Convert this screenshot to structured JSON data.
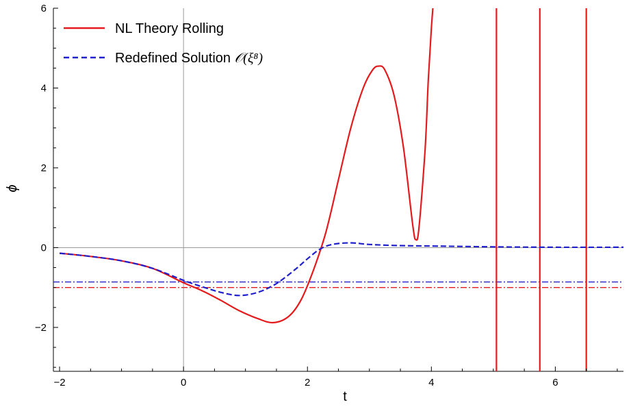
{
  "chart_data": {
    "type": "line",
    "xlabel": "t",
    "ylabel": "ϕ",
    "xlim": [
      -2.1,
      7.1
    ],
    "ylim": [
      -3.1,
      6.0
    ],
    "x_ticks": [
      -2,
      0,
      2,
      4,
      6
    ],
    "x_tick_labels": [
      "−2",
      "0",
      "2",
      "4",
      "6"
    ],
    "y_ticks": [
      -2,
      0,
      2,
      4,
      6
    ],
    "y_tick_labels": [
      "−2",
      "0",
      "2",
      "4",
      "6"
    ],
    "grid": false,
    "reference_lines": {
      "x": 0,
      "y": 0
    },
    "legend_position": "top-left",
    "series": [
      {
        "name": "NL Theory Rolling",
        "color": "#e41a1c",
        "style": "solid",
        "x": [
          -2.0,
          -1.5,
          -1.0,
          -0.5,
          0.0,
          0.3,
          0.6,
          0.9,
          1.2,
          1.45,
          1.7,
          1.9,
          2.1,
          2.3,
          2.5,
          2.7,
          2.9,
          3.05,
          3.15,
          3.25,
          3.4,
          3.55,
          3.7,
          3.75,
          3.8,
          3.9,
          3.95,
          4.0,
          4.05
        ],
        "y": [
          -0.14,
          -0.22,
          -0.33,
          -0.52,
          -0.88,
          -1.08,
          -1.32,
          -1.58,
          -1.78,
          -1.88,
          -1.72,
          -1.3,
          -0.55,
          0.4,
          1.7,
          3.0,
          4.0,
          4.45,
          4.55,
          4.45,
          3.8,
          2.5,
          0.55,
          0.2,
          0.5,
          2.5,
          4.2,
          5.5,
          6.5
        ],
        "asymptotes_x": [
          5.05,
          5.75,
          6.5
        ]
      },
      {
        "name": "Redefined Solution 𝒪(ξ⁸)",
        "color": "#1f1fcc",
        "style": "dashed",
        "x": [
          -2.0,
          -1.5,
          -1.0,
          -0.5,
          0.0,
          0.3,
          0.6,
          0.9,
          1.2,
          1.5,
          1.8,
          2.0,
          2.2,
          2.4,
          2.7,
          3.0,
          3.5,
          4.0,
          5.0,
          6.0,
          7.1
        ],
        "y": [
          -0.14,
          -0.22,
          -0.33,
          -0.52,
          -0.82,
          -0.98,
          -1.12,
          -1.2,
          -1.12,
          -0.9,
          -0.55,
          -0.28,
          -0.04,
          0.08,
          0.12,
          0.08,
          0.05,
          0.04,
          0.02,
          0.01,
          0.01
        ]
      }
    ],
    "hlines": [
      {
        "y": -0.86,
        "color": "#1f1fcc",
        "style": "dashdot"
      },
      {
        "y": -1.0,
        "color": "#e41a1c",
        "style": "dashdot"
      }
    ]
  },
  "legend": {
    "items": [
      {
        "label": "NL Theory Rolling"
      },
      {
        "label": "Redefined Solution ",
        "math": "𝒪(ξ⁸)"
      }
    ]
  }
}
